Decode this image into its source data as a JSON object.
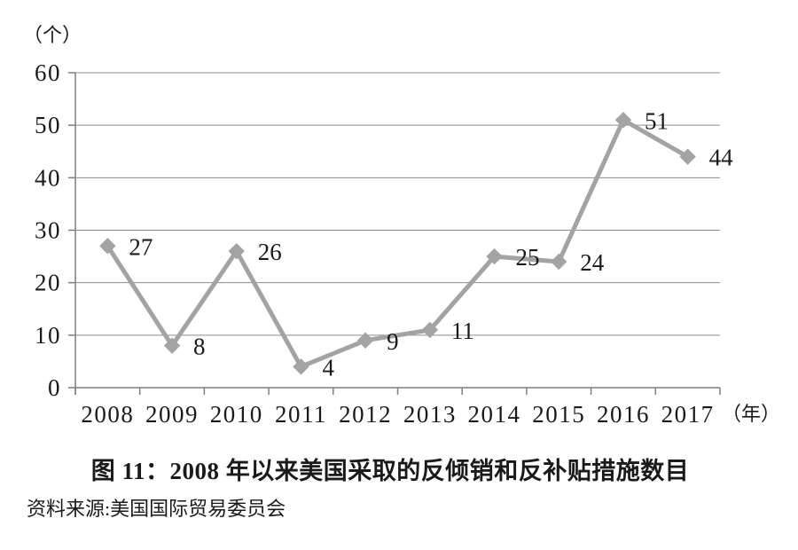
{
  "figure": {
    "title": "图 11：2008 年以来美国采取的反倾销和反补贴措施数目",
    "source_note": "资料来源:美国国际贸易委员会"
  },
  "chart_data": {
    "type": "line",
    "title": "图 11：2008 年以来美国采取的反倾销和反补贴措施数目",
    "categories": [
      "2008",
      "2009",
      "2010",
      "2011",
      "2012",
      "2013",
      "2014",
      "2015",
      "2016",
      "2017"
    ],
    "values": [
      27,
      8,
      26,
      4,
      9,
      11,
      25,
      24,
      51,
      44
    ],
    "xlabel": "（年）",
    "ylabel": "（个）",
    "ylim": [
      0,
      60
    ],
    "yticks": [
      0,
      10,
      20,
      30,
      40,
      50,
      60
    ],
    "grid": true,
    "legend": false,
    "data_labels": true,
    "marker": "diamond",
    "colors": {
      "line": "#a3a3a3",
      "marker": "#a3a3a3",
      "grid": "#8c8c8c",
      "axis": "#7f7f7f",
      "text": "#1a1a1a"
    }
  }
}
